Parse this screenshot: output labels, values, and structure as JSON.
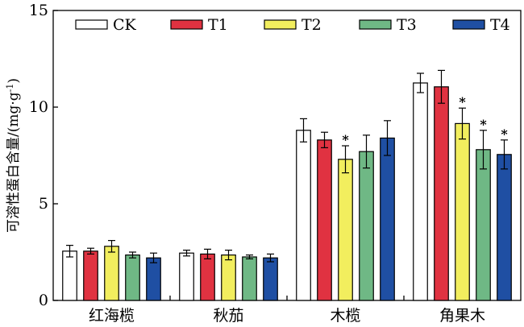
{
  "chart_data": {
    "type": "bar",
    "ylabel": "可溶性蛋白含量/(mg·g⁻¹)",
    "ylabel_parts": {
      "base": "可溶性蛋白含量/(mg·g",
      "sup": "-1",
      "close": ")"
    },
    "xlabel": "",
    "ylim": [
      0,
      15
    ],
    "yticks": [
      0,
      5,
      10,
      15
    ],
    "categories": [
      "红海榄",
      "秋茄",
      "木榄",
      "角果木"
    ],
    "legend_position": "top",
    "grid": false,
    "series": [
      {
        "name": "CK",
        "color": "#ffffff",
        "values": [
          2.55,
          2.45,
          8.8,
          11.25
        ],
        "errors": [
          0.3,
          0.15,
          0.6,
          0.5
        ],
        "significant": [
          false,
          false,
          false,
          false
        ]
      },
      {
        "name": "T1",
        "color": "#e03241",
        "values": [
          2.55,
          2.4,
          8.3,
          11.05
        ],
        "errors": [
          0.15,
          0.25,
          0.4,
          0.85
        ],
        "significant": [
          false,
          false,
          false,
          false
        ]
      },
      {
        "name": "T2",
        "color": "#f2ee5e",
        "values": [
          2.8,
          2.35,
          7.3,
          9.15
        ],
        "errors": [
          0.3,
          0.25,
          0.7,
          0.8
        ],
        "significant": [
          false,
          false,
          true,
          true
        ]
      },
      {
        "name": "T3",
        "color": "#6fb885",
        "values": [
          2.35,
          2.25,
          7.7,
          7.8
        ],
        "errors": [
          0.15,
          0.1,
          0.85,
          1.0
        ],
        "significant": [
          false,
          false,
          false,
          true
        ]
      },
      {
        "name": "T4",
        "color": "#1f4fa3",
        "values": [
          2.2,
          2.2,
          8.4,
          7.55
        ],
        "errors": [
          0.25,
          0.2,
          0.9,
          0.75
        ],
        "significant": [
          false,
          false,
          false,
          true
        ]
      }
    ],
    "significance_symbol": "*"
  }
}
